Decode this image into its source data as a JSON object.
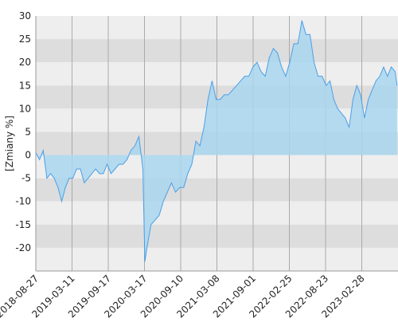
{
  "chart_data": {
    "type": "area",
    "y_label": "[Zmiany %]",
    "color": "#4a9fe8",
    "fill": "#a9d6ee",
    "band_colors": [
      "#eeeeee",
      "#dddddd"
    ],
    "grid": true,
    "ylim": [
      -25,
      30
    ],
    "yticks": [
      30,
      25,
      20,
      15,
      10,
      5,
      0,
      -5,
      -10,
      -15,
      -20
    ],
    "xlim": [
      "2018-08-27",
      "2023-09-05"
    ],
    "xticks": [
      "2018-08-27",
      "2019-03-11",
      "2019-09-17",
      "2020-03-17",
      "2020-09-10",
      "2021-03-08",
      "2021-09-01",
      "2022-02-25",
      "2022-08-23",
      "2023-02-28"
    ],
    "x": [
      "2018-08-27",
      "2018-09-16",
      "2018-10-06",
      "2018-10-26",
      "2018-11-15",
      "2018-12-05",
      "2018-12-25",
      "2019-01-14",
      "2019-02-03",
      "2019-02-23",
      "2019-03-15",
      "2019-04-04",
      "2019-04-24",
      "2019-05-14",
      "2019-06-03",
      "2019-06-23",
      "2019-07-13",
      "2019-08-02",
      "2019-08-22",
      "2019-09-11",
      "2019-10-01",
      "2019-10-21",
      "2019-11-10",
      "2019-11-30",
      "2019-12-20",
      "2020-01-09",
      "2020-01-29",
      "2020-02-18",
      "2020-03-09",
      "2020-03-19",
      "2020-03-29",
      "2020-04-18",
      "2020-05-08",
      "2020-05-28",
      "2020-06-17",
      "2020-07-07",
      "2020-07-27",
      "2020-08-16",
      "2020-09-05",
      "2020-09-25",
      "2020-10-15",
      "2020-11-04",
      "2020-11-24",
      "2020-12-14",
      "2021-01-03",
      "2021-01-23",
      "2021-02-12",
      "2021-03-04",
      "2021-03-24",
      "2021-04-13",
      "2021-05-03",
      "2021-05-23",
      "2021-06-12",
      "2021-07-02",
      "2021-07-22",
      "2021-08-11",
      "2021-08-31",
      "2021-09-20",
      "2021-10-10",
      "2021-10-30",
      "2021-11-19",
      "2021-12-09",
      "2021-12-29",
      "2022-01-18",
      "2022-02-07",
      "2022-02-27",
      "2022-03-19",
      "2022-04-08",
      "2022-04-28",
      "2022-05-18",
      "2022-06-07",
      "2022-06-27",
      "2022-07-17",
      "2022-08-06",
      "2022-08-26",
      "2022-09-15",
      "2022-10-05",
      "2022-10-25",
      "2022-11-14",
      "2022-12-04",
      "2022-12-24",
      "2023-01-13",
      "2023-02-02",
      "2023-02-22",
      "2023-03-14",
      "2023-04-03",
      "2023-04-23",
      "2023-05-13",
      "2023-06-02",
      "2023-06-22",
      "2023-07-12",
      "2023-08-01",
      "2023-08-21",
      "2023-08-31"
    ],
    "values": [
      0.5,
      -1,
      1,
      -5,
      -4,
      -5,
      -7,
      -10,
      -7,
      -5,
      -5,
      -3,
      -3,
      -6,
      -5,
      -4,
      -3,
      -4,
      -4,
      -2,
      -4,
      -3,
      -2,
      -2,
      -1,
      1,
      2,
      4,
      -3,
      -23,
      -20,
      -15,
      -14,
      -13,
      -10,
      -8,
      -6,
      -8,
      -7,
      -7,
      -4,
      -2,
      3,
      2,
      6,
      12,
      16,
      12,
      12,
      13,
      13,
      14,
      15,
      16,
      17,
      17,
      19,
      20,
      18,
      17,
      21,
      23,
      22,
      19,
      17,
      20,
      24,
      24,
      29,
      26,
      26,
      20,
      17,
      17,
      15,
      16,
      12,
      10,
      9,
      8,
      6,
      12,
      15,
      13,
      8,
      12,
      14,
      16,
      17,
      19,
      17,
      19,
      18,
      15
    ]
  }
}
